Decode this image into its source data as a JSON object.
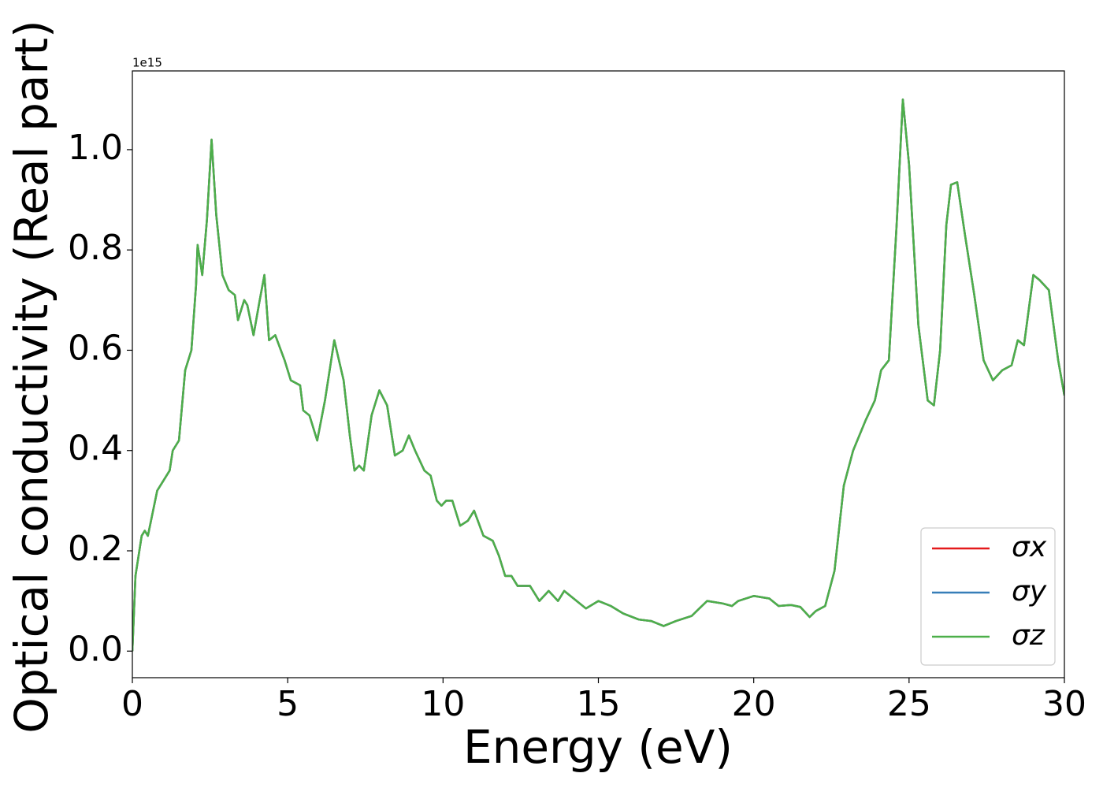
{
  "chart_data": {
    "type": "line",
    "x_label": "Energy (eV)",
    "y_label": "Optical conductivity (Real part)",
    "y_offset_label": "1e15",
    "x": [
      0,
      0.1,
      0.3,
      0.4,
      0.5,
      0.6,
      0.8,
      1.0,
      1.2,
      1.3,
      1.5,
      1.7,
      1.9,
      2.05,
      2.1,
      2.25,
      2.4,
      2.55,
      2.7,
      2.9,
      3.1,
      3.3,
      3.4,
      3.6,
      3.7,
      3.9,
      4.1,
      4.25,
      4.4,
      4.6,
      4.9,
      5.1,
      5.4,
      5.5,
      5.7,
      5.95,
      6.2,
      6.5,
      6.8,
      7.0,
      7.15,
      7.3,
      7.45,
      7.7,
      7.95,
      8.2,
      8.45,
      8.7,
      8.9,
      9.1,
      9.4,
      9.6,
      9.8,
      9.95,
      10.1,
      10.3,
      10.55,
      10.8,
      11.0,
      11.3,
      11.6,
      11.8,
      12.0,
      12.2,
      12.4,
      12.8,
      13.1,
      13.4,
      13.7,
      13.9,
      14.3,
      14.6,
      15.0,
      15.4,
      15.8,
      16.3,
      16.7,
      17.1,
      17.5,
      18.0,
      18.5,
      19.0,
      19.3,
      19.5,
      20.0,
      20.5,
      20.8,
      21.2,
      21.5,
      21.8,
      22.0,
      22.3,
      22.6,
      22.9,
      23.2,
      23.6,
      23.9,
      24.1,
      24.35,
      24.6,
      24.8,
      25.0,
      25.3,
      25.6,
      25.8,
      26.0,
      26.2,
      26.35,
      26.55,
      26.8,
      27.1,
      27.4,
      27.7,
      28.0,
      28.3,
      28.5,
      28.7,
      29.0,
      29.2,
      29.5,
      29.8,
      30.0
    ],
    "series": [
      {
        "name": "σx",
        "color": "#e41a1c",
        "values": [
          0,
          0.15,
          0.23,
          0.24,
          0.23,
          0.26,
          0.32,
          0.34,
          0.36,
          0.4,
          0.42,
          0.56,
          0.6,
          0.73,
          0.81,
          0.75,
          0.86,
          1.02,
          0.87,
          0.75,
          0.72,
          0.71,
          0.66,
          0.7,
          0.69,
          0.63,
          0.7,
          0.75,
          0.62,
          0.63,
          0.58,
          0.54,
          0.53,
          0.48,
          0.47,
          0.42,
          0.5,
          0.62,
          0.54,
          0.43,
          0.36,
          0.37,
          0.36,
          0.47,
          0.52,
          0.49,
          0.39,
          0.4,
          0.43,
          0.4,
          0.36,
          0.35,
          0.3,
          0.29,
          0.3,
          0.3,
          0.25,
          0.26,
          0.28,
          0.23,
          0.22,
          0.19,
          0.15,
          0.15,
          0.13,
          0.13,
          0.1,
          0.12,
          0.1,
          0.12,
          0.1,
          0.085,
          0.1,
          0.09,
          0.075,
          0.063,
          0.06,
          0.05,
          0.06,
          0.07,
          0.1,
          0.095,
          0.09,
          0.1,
          0.11,
          0.105,
          0.09,
          0.092,
          0.088,
          0.068,
          0.08,
          0.09,
          0.16,
          0.33,
          0.4,
          0.46,
          0.5,
          0.56,
          0.58,
          0.85,
          1.1,
          0.97,
          0.65,
          0.5,
          0.49,
          0.6,
          0.85,
          0.93,
          0.935,
          0.83,
          0.71,
          0.58,
          0.54,
          0.56,
          0.57,
          0.62,
          0.61,
          0.75,
          0.74,
          0.72,
          0.58,
          0.51
        ]
      },
      {
        "name": "σy",
        "color": "#377eb8",
        "values": [
          0,
          0.15,
          0.23,
          0.24,
          0.23,
          0.26,
          0.32,
          0.34,
          0.36,
          0.4,
          0.42,
          0.56,
          0.6,
          0.73,
          0.81,
          0.75,
          0.86,
          1.02,
          0.87,
          0.75,
          0.72,
          0.71,
          0.66,
          0.7,
          0.69,
          0.63,
          0.7,
          0.75,
          0.62,
          0.63,
          0.58,
          0.54,
          0.53,
          0.48,
          0.47,
          0.42,
          0.5,
          0.62,
          0.54,
          0.43,
          0.36,
          0.37,
          0.36,
          0.47,
          0.52,
          0.49,
          0.39,
          0.4,
          0.43,
          0.4,
          0.36,
          0.35,
          0.3,
          0.29,
          0.3,
          0.3,
          0.25,
          0.26,
          0.28,
          0.23,
          0.22,
          0.19,
          0.15,
          0.15,
          0.13,
          0.13,
          0.1,
          0.12,
          0.1,
          0.12,
          0.1,
          0.085,
          0.1,
          0.09,
          0.075,
          0.063,
          0.06,
          0.05,
          0.06,
          0.07,
          0.1,
          0.095,
          0.09,
          0.1,
          0.11,
          0.105,
          0.09,
          0.092,
          0.088,
          0.068,
          0.08,
          0.09,
          0.16,
          0.33,
          0.4,
          0.46,
          0.5,
          0.56,
          0.58,
          0.85,
          1.1,
          0.97,
          0.65,
          0.5,
          0.49,
          0.6,
          0.85,
          0.93,
          0.935,
          0.83,
          0.71,
          0.58,
          0.54,
          0.56,
          0.57,
          0.62,
          0.61,
          0.75,
          0.74,
          0.72,
          0.58,
          0.51
        ]
      },
      {
        "name": "σz",
        "color": "#4daf4a",
        "values": [
          0,
          0.15,
          0.23,
          0.24,
          0.23,
          0.26,
          0.32,
          0.34,
          0.36,
          0.4,
          0.42,
          0.56,
          0.6,
          0.73,
          0.81,
          0.75,
          0.86,
          1.02,
          0.87,
          0.75,
          0.72,
          0.71,
          0.66,
          0.7,
          0.69,
          0.63,
          0.7,
          0.75,
          0.62,
          0.63,
          0.58,
          0.54,
          0.53,
          0.48,
          0.47,
          0.42,
          0.5,
          0.62,
          0.54,
          0.43,
          0.36,
          0.37,
          0.36,
          0.47,
          0.52,
          0.49,
          0.39,
          0.4,
          0.43,
          0.4,
          0.36,
          0.35,
          0.3,
          0.29,
          0.3,
          0.3,
          0.25,
          0.26,
          0.28,
          0.23,
          0.22,
          0.19,
          0.15,
          0.15,
          0.13,
          0.13,
          0.1,
          0.12,
          0.1,
          0.12,
          0.1,
          0.085,
          0.1,
          0.09,
          0.075,
          0.063,
          0.06,
          0.05,
          0.06,
          0.07,
          0.1,
          0.095,
          0.09,
          0.1,
          0.11,
          0.105,
          0.09,
          0.092,
          0.088,
          0.068,
          0.08,
          0.09,
          0.16,
          0.33,
          0.4,
          0.46,
          0.5,
          0.56,
          0.58,
          0.85,
          1.1,
          0.97,
          0.65,
          0.5,
          0.49,
          0.6,
          0.85,
          0.93,
          0.935,
          0.83,
          0.71,
          0.58,
          0.54,
          0.56,
          0.57,
          0.62,
          0.61,
          0.75,
          0.74,
          0.72,
          0.58,
          0.51
        ]
      }
    ],
    "xlim": [
      0,
      30
    ],
    "xticks": [
      0,
      5,
      10,
      15,
      20,
      25,
      30
    ],
    "ylim": [
      -0.053,
      1.157
    ],
    "yticks": [
      {
        "value": 0,
        "label": "0.0"
      },
      0.2,
      0.4,
      0.6,
      0.8,
      {
        "value": 1,
        "label": "1.0"
      }
    ],
    "grid": false,
    "legend": "lower right"
  }
}
